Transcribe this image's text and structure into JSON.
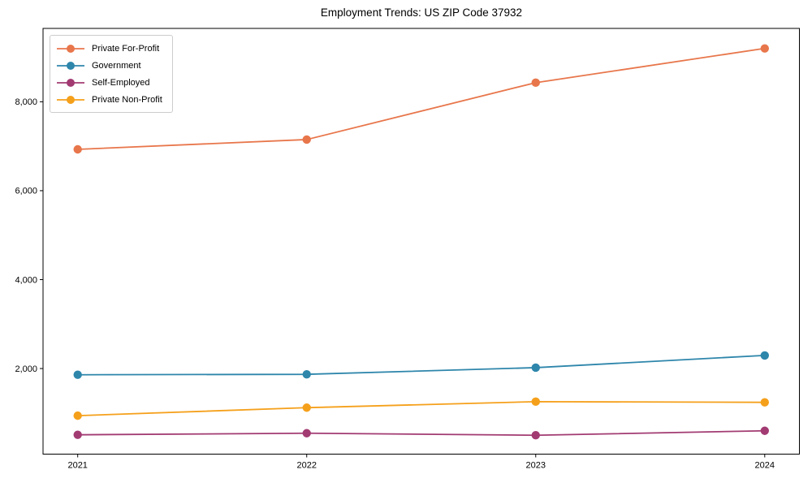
{
  "chart_data": {
    "type": "line",
    "title": "Employment Trends: US ZIP Code 37932",
    "xlabel": "",
    "ylabel": "",
    "x": [
      "2021",
      "2022",
      "2023",
      "2024"
    ],
    "series": [
      {
        "name": "Private For-Profit",
        "color": "#E8764B",
        "values": [
          6930,
          7150,
          8430,
          9200
        ]
      },
      {
        "name": "Government",
        "color": "#2E86AB",
        "values": [
          1860,
          1870,
          2020,
          2295
        ]
      },
      {
        "name": "Self-Employed",
        "color": "#A23B72",
        "values": [
          510,
          545,
          500,
          600
        ]
      },
      {
        "name": "Private Non-Profit",
        "color": "#F5A01B",
        "values": [
          940,
          1120,
          1255,
          1240
        ]
      }
    ],
    "yticks": [
      2000,
      4000,
      6000,
      8000
    ],
    "ytick_labels": [
      "2,000",
      "4,000",
      "6,000",
      "8,000"
    ],
    "ylim": [
      75,
      9650
    ],
    "grid": false,
    "legend_position": "upper-left",
    "marker": "circle",
    "axis_color": "#000000"
  }
}
